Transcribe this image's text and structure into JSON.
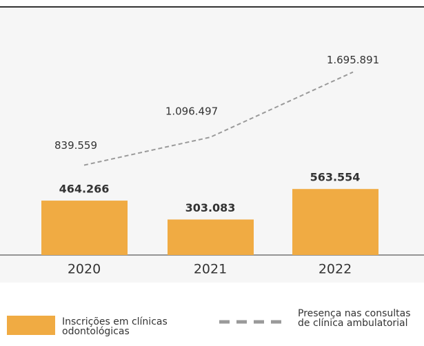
{
  "chart_data": {
    "type": "bar_line",
    "categories": [
      "2020",
      "2021",
      "2022"
    ],
    "series": [
      {
        "name": "Inscrições em clínicas odontológicas",
        "type": "bar",
        "color": "#f0ab43",
        "values": [
          464266,
          303083,
          563554
        ],
        "value_labels": [
          "464.266",
          "303.083",
          "563.554"
        ]
      },
      {
        "name": "Presença nas consultas de clínica ambulatorial",
        "type": "line",
        "color": "#9a9a9a",
        "dashed": true,
        "values": [
          839559,
          1096497,
          1695891
        ],
        "value_labels": [
          "839.559",
          "1.096.497",
          "1.695.891"
        ]
      }
    ]
  }
}
